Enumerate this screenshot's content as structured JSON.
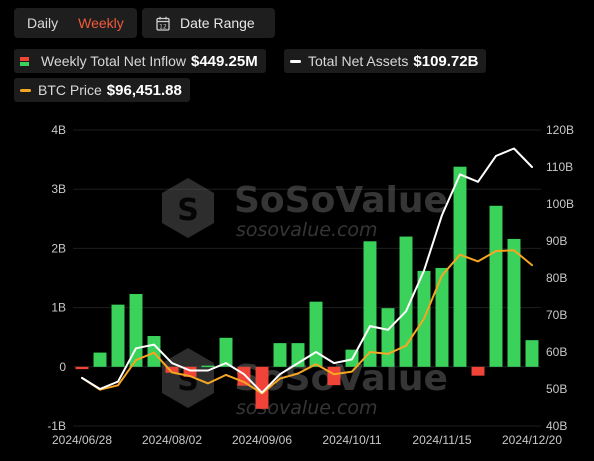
{
  "controls": {
    "period_daily": "Daily",
    "period_weekly": "Weekly",
    "date_range_label": "Date Range"
  },
  "legend": {
    "inflow_label": "Weekly Total Net Inflow",
    "inflow_value": "$449.25M",
    "assets_label": "Total Net Assets",
    "assets_value": "$109.72B",
    "price_label": "BTC Price",
    "price_value": "$96,451.88"
  },
  "watermark": {
    "brand": "SoSoValue",
    "url": "sosovalue.com"
  },
  "colors": {
    "positive": "#3ad25a",
    "negative": "#f04438",
    "assets_line": "#ffffff",
    "price_line": "#f5a623",
    "active_toggle": "#f15a3a"
  },
  "chart_data": {
    "type": "bar",
    "x_tick_labels": [
      "2024/06/28",
      "2024/08/02",
      "2024/09/06",
      "2024/10/11",
      "2024/11/15",
      "2024/12/20"
    ],
    "left_axis": {
      "ylim": [
        -1,
        4
      ],
      "tick_labels": [
        "-1B",
        "0",
        "1B",
        "2B",
        "3B",
        "4B"
      ]
    },
    "right_axis": {
      "ylim": [
        40,
        120
      ],
      "tick_labels": [
        "40B",
        "50B",
        "60B",
        "70B",
        "80B",
        "90B",
        "100B",
        "110B",
        "120B"
      ]
    },
    "series": [
      {
        "name": "Weekly Total Net Inflow",
        "axis": "left",
        "unit": "B",
        "values": [
          -0.04,
          0.24,
          1.05,
          1.23,
          0.52,
          -0.1,
          -0.17,
          0.02,
          0.49,
          -0.32,
          -0.71,
          0.4,
          0.4,
          1.1,
          -0.31,
          0.29,
          2.12,
          0.99,
          2.2,
          1.62,
          1.67,
          3.38,
          -0.15,
          2.72,
          2.16,
          0.45
        ]
      },
      {
        "name": "Total Net Assets",
        "axis": "right",
        "unit": "B",
        "values": [
          53,
          50,
          52,
          61,
          62,
          57,
          55,
          55,
          57,
          54,
          49,
          54,
          57,
          60,
          57,
          58,
          67,
          66,
          71,
          82,
          97,
          108,
          106,
          113,
          115,
          110
        ]
      },
      {
        "name": "BTC Price",
        "axis": "right",
        "values": [
          53,
          49.8,
          51,
          57.8,
          59.8,
          54.5,
          53.5,
          51.5,
          53.8,
          51.9,
          48.8,
          52.8,
          54.2,
          56.7,
          54,
          54.7,
          60,
          59.5,
          61.7,
          69,
          80.7,
          86.3,
          84.5,
          87.3,
          87.5,
          83.5
        ]
      }
    ]
  }
}
